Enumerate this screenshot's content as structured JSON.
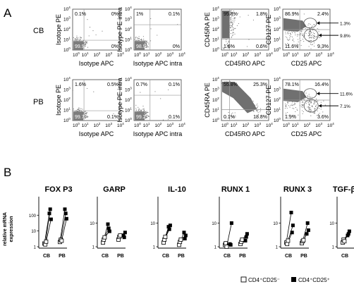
{
  "panel_labels": {
    "a": "A",
    "b": "B"
  },
  "rows_a": [
    {
      "label": "CB",
      "plots": [
        {
          "ylabel": "Isotope PE",
          "xlabel": "Isotype APC",
          "quadrants": {
            "ul": "0.1%",
            "ur": "0%",
            "ll": "99.9",
            "lr": "0%"
          },
          "kind": "iso"
        },
        {
          "ylabel": "Isotype PE intra",
          "xlabel": "Isotype APC intra",
          "quadrants": {
            "ul": "1%",
            "ur": "0.1%",
            "ll": "98.9",
            "lr": "0%"
          },
          "kind": "iso"
        },
        {
          "ylabel": "CD45RA PE",
          "xlabel": "CD45RO APC",
          "quadrants": {
            "ul": "95.8%",
            "ur": "1.8%",
            "ll": "1.6%",
            "lr": "0.6%"
          },
          "kind": "cb45"
        },
        {
          "ylabel": "CD127 PE",
          "xlabel": "CD25 APC",
          "quadrants": {
            "ul": "86.9%",
            "ur": "2.4%",
            "ll": "11.6%",
            "lr": "9.3%"
          },
          "kind": "cd127",
          "gates": [
            "1.3%",
            "9.8%"
          ]
        }
      ]
    },
    {
      "label": "PB",
      "plots": [
        {
          "ylabel": "Isotope PE",
          "xlabel": "Isotype APC",
          "quadrants": {
            "ul": "1.6%",
            "ur": "0.5%",
            "ll": "99.7",
            "lr": "0.1%"
          },
          "kind": "iso"
        },
        {
          "ylabel": "Isotype PE intra",
          "xlabel": "Isotype APC intra",
          "quadrants": {
            "ul": "0.7%",
            "ur": "0.1%",
            "ll": "99.2",
            "lr": "0.1%"
          },
          "kind": "iso"
        },
        {
          "ylabel": "CD45RA PE",
          "xlabel": "CD45RO APC",
          "quadrants": {
            "ul": "55.8%",
            "ur": "25.3%",
            "ll": "0.1%",
            "lr": "18.8%"
          },
          "kind": "pb45"
        },
        {
          "ylabel": "CD127 PE",
          "xlabel": "CD25 APC",
          "quadrants": {
            "ul": "78.1%",
            "ur": "16.4%",
            "ll": "1.9%",
            "lr": "3.6%"
          },
          "kind": "cd127",
          "gates": [
            "11.6%",
            "7.1%"
          ]
        }
      ]
    }
  ],
  "axis_ticks": [
    "10",
    "10",
    "10",
    "10",
    "10"
  ],
  "axis_tick_exps": [
    "0",
    "1",
    "2",
    "3",
    "4"
  ],
  "b_ylabel": [
    "relative mRNA",
    "expression"
  ],
  "groups": [
    "CB",
    "PB"
  ],
  "legend": {
    "open_label": "CD4⁺CD25⁻",
    "filled_label": "CD4⁺CD25⁺"
  },
  "chart_data": [
    {
      "type": "scatter",
      "title": "FOX P3",
      "yscale": "log",
      "ylim": [
        1,
        1000
      ],
      "yticks": [
        "1",
        "10",
        "100"
      ],
      "categories": [
        "CB",
        "PB"
      ],
      "pairs": {
        "CB": [
          [
            1.6,
            130
          ],
          [
            1.4,
            240
          ],
          [
            2.1,
            55
          ]
        ],
        "PB": [
          [
            2.0,
            240
          ],
          [
            2.8,
            130
          ],
          [
            2.4,
            60
          ]
        ]
      }
    },
    {
      "type": "scatter",
      "title": "GARP",
      "yscale": "log",
      "ylim": [
        1,
        100
      ],
      "yticks": [
        "1",
        "10"
      ],
      "categories": [
        "CB",
        "PB"
      ],
      "pairs": {
        "CB": [
          [
            1.5,
            9
          ],
          [
            2.0,
            6
          ],
          [
            2.5,
            4.5
          ]
        ],
        "PB": [
          [
            2.0,
            3
          ],
          [
            2.6,
            2.5
          ],
          [
            3.0,
            4
          ]
        ]
      }
    },
    {
      "type": "scatter",
      "title": "IL-10",
      "yscale": "log",
      "ylim": [
        1,
        100
      ],
      "yticks": [
        "1",
        "10"
      ],
      "categories": [
        "CB",
        "PB"
      ],
      "pairs": {
        "CB": [
          [
            1.5,
            7
          ],
          [
            2.0,
            5.5
          ],
          [
            2.6,
            8
          ]
        ],
        "PB": [
          [
            1.2,
            4
          ],
          [
            1.6,
            2.2
          ],
          [
            2.0,
            3
          ]
        ]
      }
    },
    {
      "type": "scatter",
      "title": "RUNX 1",
      "yscale": "log",
      "ylim": [
        1,
        100
      ],
      "yticks": [
        "1",
        "10"
      ],
      "categories": [
        "CB",
        "PB"
      ],
      "pairs": {
        "CB": [
          [
            1.2,
            1.3
          ],
          [
            1.4,
            1.2
          ],
          [
            1.0,
            10
          ]
        ],
        "PB": [
          [
            1.3,
            1.8
          ],
          [
            1.6,
            2.6
          ],
          [
            2.0,
            3.5
          ]
        ]
      }
    },
    {
      "type": "scatter",
      "title": "RUNX 3",
      "yscale": "log",
      "ylim": [
        1,
        100
      ],
      "yticks": [
        "1",
        "10"
      ],
      "categories": [
        "CB",
        "PB"
      ],
      "pairs": {
        "CB": [
          [
            1.5,
            28
          ],
          [
            1.3,
            4
          ],
          [
            1.8,
            8
          ]
        ],
        "PB": [
          [
            1.4,
            3.5
          ],
          [
            1.7,
            10
          ],
          [
            1.9,
            5
          ]
        ]
      }
    },
    {
      "type": "scatter",
      "title": "TGF-β",
      "yscale": "log",
      "ylim": [
        1,
        100
      ],
      "yticks": [
        "1",
        "10"
      ],
      "categories": [
        "CB",
        "PB"
      ],
      "pairs": {
        "CB": [
          [
            1.5,
            3
          ],
          [
            2.0,
            3.5
          ],
          [
            1.7,
            4.5
          ]
        ],
        "PB": [
          [
            1.4,
            2.6
          ],
          [
            1.8,
            3.2
          ],
          [
            2.1,
            4
          ]
        ]
      }
    }
  ]
}
